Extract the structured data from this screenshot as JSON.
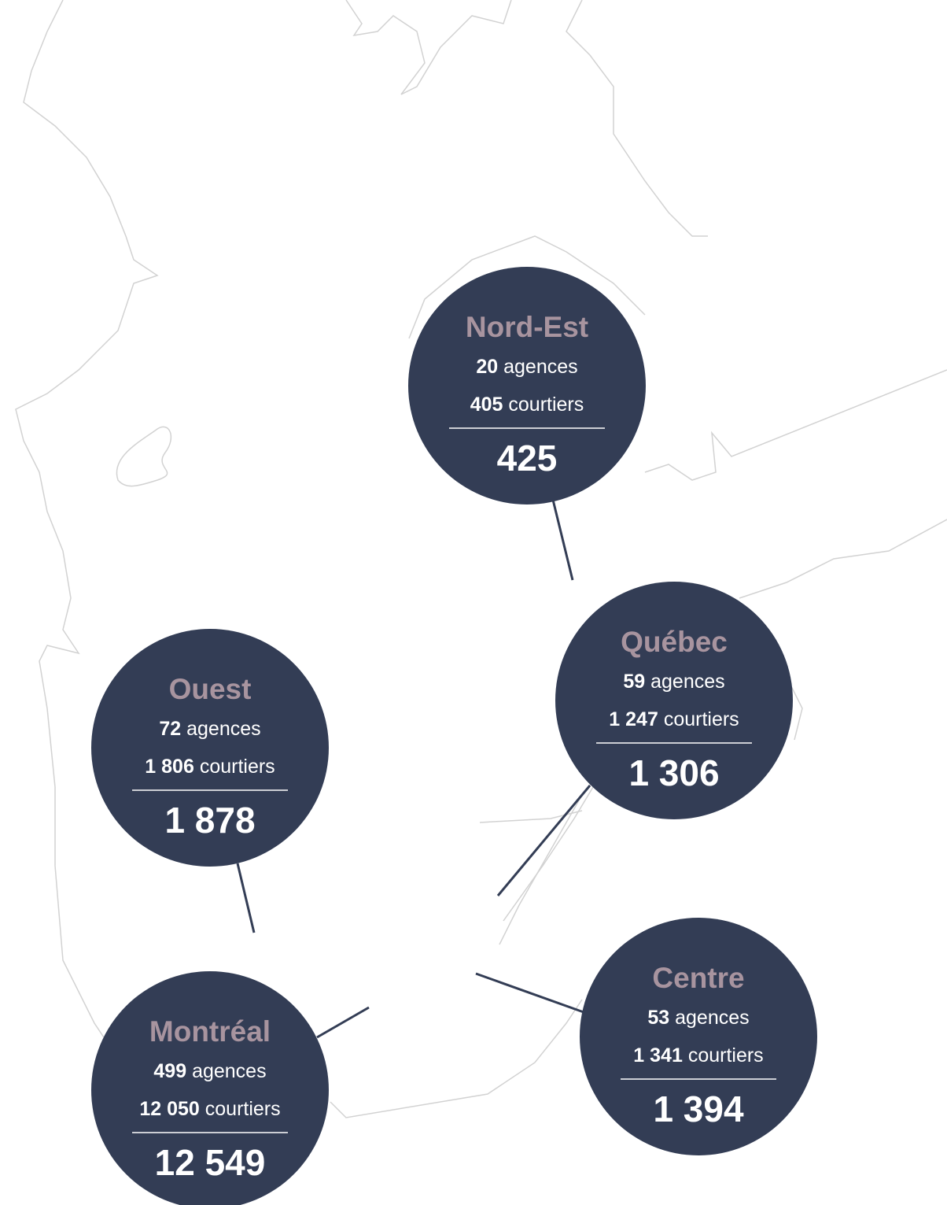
{
  "regions": [
    {
      "name": "Nord-Est",
      "agences": {
        "count": "20",
        "label": "agences"
      },
      "courtiers": {
        "count": "405",
        "label": "courtiers"
      },
      "total": "425"
    },
    {
      "name": "Québec",
      "agences": {
        "count": "59",
        "label": "agences"
      },
      "courtiers": {
        "count": "1 247",
        "label": "courtiers"
      },
      "total": "1 306"
    },
    {
      "name": "Ouest",
      "agences": {
        "count": "72",
        "label": "agences"
      },
      "courtiers": {
        "count": "1 806",
        "label": "courtiers"
      },
      "total": "1 878"
    },
    {
      "name": "Montréal",
      "agences": {
        "count": "499",
        "label": "agences"
      },
      "courtiers": {
        "count": "12 050",
        "label": "courtiers"
      },
      "total": "12 549"
    },
    {
      "name": "Centre",
      "agences": {
        "count": "53",
        "label": "agences"
      },
      "courtiers": {
        "count": "1 341",
        "label": "courtiers"
      },
      "total": "1 394"
    }
  ]
}
